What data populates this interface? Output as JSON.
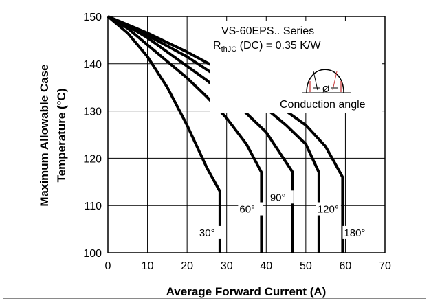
{
  "chart_data": {
    "type": "line",
    "xlabel": "Average Forward Current (A)",
    "ylabel_line1": "Maximum Allowable Case",
    "ylabel_line2": "Temperature (°C)",
    "xlim": [
      0,
      70
    ],
    "ylim": [
      100,
      150
    ],
    "xticks": [
      "0",
      "10",
      "20",
      "30",
      "40",
      "50",
      "60",
      "70"
    ],
    "yticks": [
      "100",
      "110",
      "120",
      "130",
      "140",
      "150"
    ],
    "grid": true,
    "annotation": {
      "series_title": "VS-60EPS.. Series",
      "rth_prefix": "R",
      "rth_sub": "thJC",
      "rth_suffix": " (DC) = 0.35 K/W",
      "phi": "Ø",
      "conduction": "Conduction angle"
    },
    "series": [
      {
        "name": "30°",
        "x": [
          0,
          5,
          10,
          15,
          20,
          25,
          28.3,
          28.3
        ],
        "y": [
          150,
          146.5,
          141.5,
          135,
          127,
          118,
          113,
          100
        ]
      },
      {
        "name": "60°",
        "x": [
          0,
          5,
          10,
          15,
          20,
          25,
          30,
          35,
          38.8,
          38.8
        ],
        "y": [
          150,
          147.5,
          144,
          140.5,
          137,
          133,
          128.5,
          123,
          117,
          100
        ]
      },
      {
        "name": "90°",
        "x": [
          0,
          5,
          10,
          15,
          20,
          25,
          30,
          35,
          40,
          46.7,
          46.7
        ],
        "y": [
          150,
          148,
          145.5,
          142.5,
          139.5,
          136.5,
          133,
          129.5,
          125.5,
          117,
          100
        ]
      },
      {
        "name": "120°",
        "x": [
          0,
          10,
          20,
          30,
          40,
          45,
          50,
          53.3,
          53.3
        ],
        "y": [
          150,
          146,
          141.5,
          136,
          130.5,
          127,
          123,
          117,
          100
        ]
      },
      {
        "name": "180°",
        "x": [
          0,
          10,
          20,
          30,
          40,
          50,
          55,
          59.3,
          59.3
        ],
        "y": [
          150,
          146.5,
          142.5,
          138,
          133,
          127,
          122.5,
          116,
          100
        ]
      }
    ]
  }
}
